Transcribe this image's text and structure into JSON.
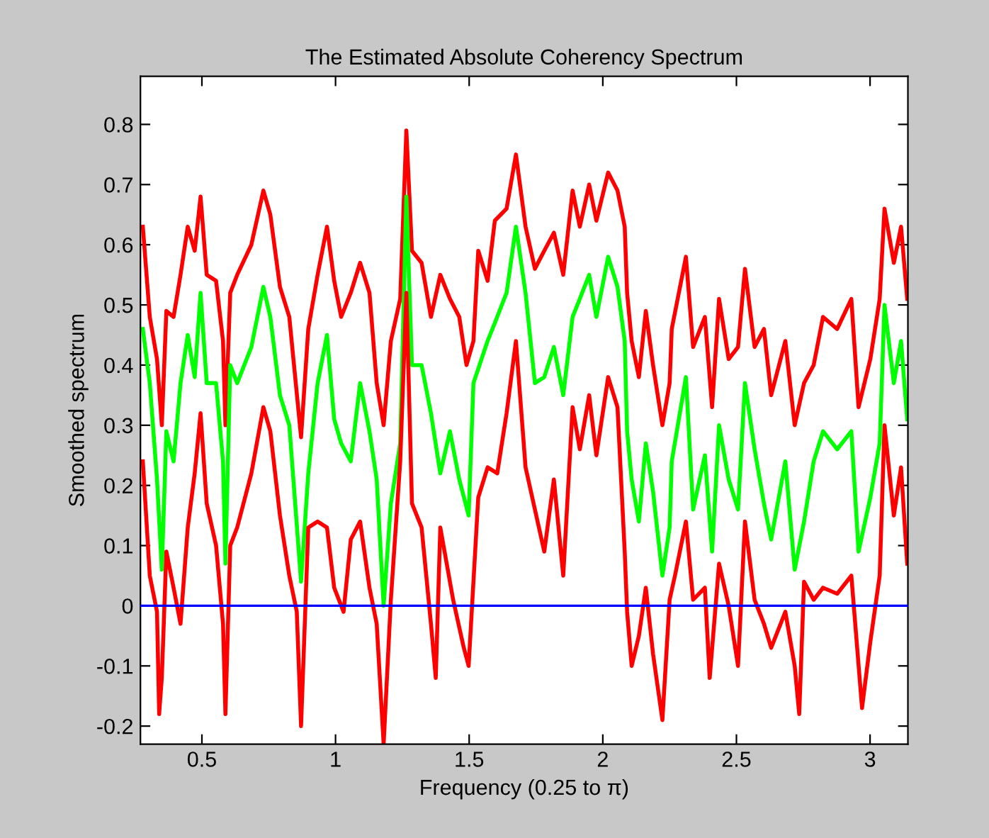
{
  "chart_data": {
    "type": "line",
    "title": "The Estimated Absolute Coherency Spectrum",
    "xlabel": "Frequency (0.25 to π)",
    "ylabel": "Smoothed spectrum",
    "xlim": [
      0.27,
      3.1416
    ],
    "ylim": [
      -0.23,
      0.88
    ],
    "xticks": [
      0.5,
      1,
      1.5,
      2,
      2.5,
      3
    ],
    "yticks": [
      -0.2,
      -0.1,
      0,
      0.1,
      0.2,
      0.3,
      0.4,
      0.5,
      0.6,
      0.7,
      0.8
    ],
    "grid": false,
    "legend": false,
    "marker": "none",
    "line_style": "solid",
    "ref_lines": [
      {
        "axis": "y",
        "value": 0,
        "color": "#0000ff"
      }
    ],
    "series": [
      {
        "color": "#ff0000",
        "x": [
          0.279,
          0.305,
          0.332,
          0.35,
          0.367,
          0.394,
          0.42,
          0.447,
          0.473,
          0.495,
          0.518,
          0.553,
          0.579,
          0.588,
          0.606,
          0.632,
          0.685,
          0.73,
          0.756,
          0.792,
          0.827,
          0.871,
          0.898,
          0.933,
          0.968,
          0.995,
          1.021,
          1.057,
          1.092,
          1.127,
          1.154,
          1.18,
          1.207,
          1.242,
          1.265,
          1.286,
          1.322,
          1.357,
          1.392,
          1.428,
          1.463,
          1.49,
          1.516,
          1.534,
          1.569,
          1.596,
          1.64,
          1.675,
          1.711,
          1.746,
          1.781,
          1.817,
          1.852,
          1.887,
          1.914,
          1.949,
          1.976,
          2.02,
          2.055,
          2.082,
          2.091,
          2.108,
          2.135,
          2.161,
          2.188,
          2.223,
          2.25,
          2.258,
          2.311,
          2.338,
          2.382,
          2.409,
          2.435,
          2.471,
          2.506,
          2.532,
          2.568,
          2.603,
          2.63,
          2.683,
          2.718,
          2.753,
          2.789,
          2.824,
          2.877,
          2.93,
          2.957,
          3.001,
          3.036,
          3.054,
          3.089,
          3.116,
          3.139
        ],
        "values": [
          0.63,
          0.48,
          0.41,
          0.3,
          0.49,
          0.48,
          0.55,
          0.63,
          0.59,
          0.68,
          0.55,
          0.54,
          0.44,
          0.3,
          0.52,
          0.55,
          0.6,
          0.69,
          0.65,
          0.53,
          0.48,
          0.28,
          0.46,
          0.55,
          0.63,
          0.54,
          0.48,
          0.52,
          0.57,
          0.52,
          0.37,
          0.3,
          0.44,
          0.51,
          0.79,
          0.59,
          0.57,
          0.48,
          0.55,
          0.51,
          0.48,
          0.4,
          0.44,
          0.59,
          0.54,
          0.64,
          0.66,
          0.75,
          0.63,
          0.56,
          0.59,
          0.62,
          0.55,
          0.69,
          0.63,
          0.7,
          0.64,
          0.72,
          0.69,
          0.63,
          0.52,
          0.44,
          0.38,
          0.49,
          0.4,
          0.3,
          0.37,
          0.46,
          0.58,
          0.43,
          0.48,
          0.33,
          0.51,
          0.41,
          0.43,
          0.56,
          0.43,
          0.46,
          0.35,
          0.44,
          0.3,
          0.37,
          0.4,
          0.48,
          0.46,
          0.51,
          0.33,
          0.41,
          0.51,
          0.66,
          0.57,
          0.63,
          0.51
        ]
      },
      {
        "color": "#00ff00",
        "x": [
          0.279,
          0.305,
          0.332,
          0.35,
          0.367,
          0.394,
          0.42,
          0.447,
          0.473,
          0.495,
          0.518,
          0.553,
          0.579,
          0.588,
          0.606,
          0.632,
          0.685,
          0.73,
          0.756,
          0.792,
          0.827,
          0.871,
          0.898,
          0.933,
          0.968,
          0.995,
          1.021,
          1.057,
          1.092,
          1.127,
          1.154,
          1.18,
          1.207,
          1.242,
          1.265,
          1.286,
          1.322,
          1.357,
          1.392,
          1.428,
          1.463,
          1.498,
          1.516,
          1.569,
          1.596,
          1.64,
          1.675,
          1.711,
          1.746,
          1.781,
          1.817,
          1.852,
          1.887,
          1.914,
          1.949,
          1.976,
          2.02,
          2.055,
          2.082,
          2.091,
          2.108,
          2.135,
          2.161,
          2.188,
          2.223,
          2.25,
          2.258,
          2.311,
          2.338,
          2.382,
          2.409,
          2.435,
          2.471,
          2.506,
          2.532,
          2.568,
          2.603,
          2.63,
          2.683,
          2.718,
          2.753,
          2.789,
          2.824,
          2.877,
          2.93,
          2.957,
          3.001,
          3.036,
          3.054,
          3.089,
          3.116,
          3.139
        ],
        "values": [
          0.46,
          0.37,
          0.21,
          0.06,
          0.29,
          0.24,
          0.37,
          0.45,
          0.38,
          0.52,
          0.37,
          0.37,
          0.24,
          0.07,
          0.4,
          0.37,
          0.43,
          0.53,
          0.48,
          0.35,
          0.3,
          0.04,
          0.22,
          0.37,
          0.45,
          0.31,
          0.27,
          0.24,
          0.37,
          0.29,
          0.21,
          0.0,
          0.17,
          0.27,
          0.68,
          0.4,
          0.4,
          0.32,
          0.22,
          0.29,
          0.21,
          0.15,
          0.37,
          0.44,
          0.47,
          0.52,
          0.63,
          0.52,
          0.37,
          0.38,
          0.43,
          0.35,
          0.48,
          0.51,
          0.55,
          0.48,
          0.58,
          0.53,
          0.44,
          0.29,
          0.21,
          0.14,
          0.27,
          0.19,
          0.05,
          0.13,
          0.24,
          0.38,
          0.16,
          0.25,
          0.09,
          0.3,
          0.21,
          0.16,
          0.37,
          0.26,
          0.17,
          0.11,
          0.24,
          0.06,
          0.14,
          0.24,
          0.29,
          0.26,
          0.29,
          0.09,
          0.18,
          0.27,
          0.5,
          0.37,
          0.44,
          0.31
        ]
      },
      {
        "color": "#ff0000",
        "x": [
          0.279,
          0.305,
          0.332,
          0.34,
          0.35,
          0.367,
          0.394,
          0.42,
          0.447,
          0.473,
          0.495,
          0.518,
          0.553,
          0.579,
          0.588,
          0.606,
          0.632,
          0.685,
          0.73,
          0.756,
          0.792,
          0.827,
          0.855,
          0.871,
          0.898,
          0.933,
          0.968,
          0.995,
          1.03,
          1.057,
          1.092,
          1.127,
          1.154,
          1.18,
          1.207,
          1.242,
          1.265,
          1.286,
          1.322,
          1.357,
          1.375,
          1.392,
          1.44,
          1.48,
          1.498,
          1.534,
          1.569,
          1.605,
          1.64,
          1.675,
          1.711,
          1.746,
          1.781,
          1.817,
          1.852,
          1.887,
          1.914,
          1.949,
          1.976,
          2.02,
          2.055,
          2.082,
          2.091,
          2.108,
          2.135,
          2.161,
          2.188,
          2.223,
          2.25,
          2.27,
          2.311,
          2.338,
          2.382,
          2.4,
          2.435,
          2.471,
          2.506,
          2.532,
          2.568,
          2.603,
          2.63,
          2.683,
          2.718,
          2.735,
          2.753,
          2.789,
          2.824,
          2.877,
          2.93,
          2.97,
          3.001,
          3.036,
          3.054,
          3.089,
          3.116,
          3.139
        ],
        "values": [
          0.24,
          0.05,
          -0.01,
          -0.18,
          -0.12,
          0.09,
          0.03,
          -0.03,
          0.13,
          0.22,
          0.32,
          0.17,
          0.1,
          -0.03,
          -0.18,
          0.1,
          0.13,
          0.22,
          0.33,
          0.29,
          0.15,
          0.05,
          -0.01,
          -0.2,
          0.13,
          0.14,
          0.13,
          0.03,
          -0.01,
          0.11,
          0.14,
          0.03,
          -0.03,
          -0.23,
          0.01,
          0.24,
          0.52,
          0.17,
          0.13,
          -0.03,
          -0.12,
          0.13,
          0.01,
          -0.07,
          -0.1,
          0.18,
          0.23,
          0.22,
          0.32,
          0.44,
          0.23,
          0.16,
          0.09,
          0.21,
          0.05,
          0.33,
          0.26,
          0.35,
          0.25,
          0.38,
          0.33,
          0.09,
          -0.01,
          -0.1,
          -0.05,
          0.03,
          -0.08,
          -0.19,
          0.01,
          0.05,
          0.14,
          0.01,
          0.03,
          -0.12,
          0.07,
          0.0,
          -0.1,
          0.14,
          0.01,
          -0.03,
          -0.07,
          -0.01,
          -0.1,
          -0.18,
          0.04,
          0.01,
          0.03,
          0.02,
          0.05,
          -0.17,
          -0.06,
          0.05,
          0.3,
          0.15,
          0.23,
          0.07
        ]
      }
    ]
  }
}
